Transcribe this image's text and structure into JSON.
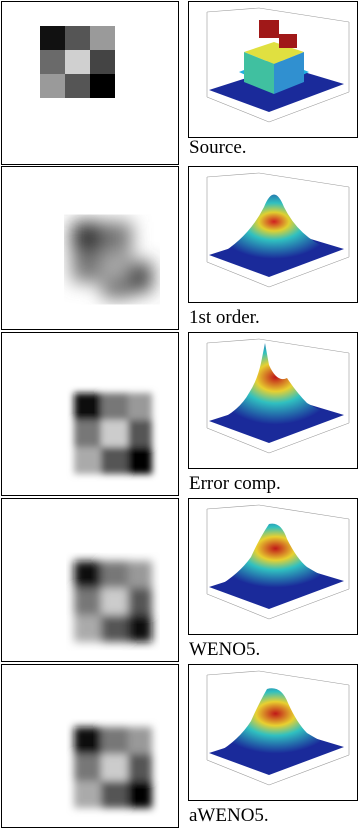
{
  "figure": {
    "rows": [
      {
        "caption": "Source.",
        "style": "source"
      },
      {
        "caption": "1st order.",
        "style": "first"
      },
      {
        "caption": "Error comp.",
        "style": "error"
      },
      {
        "caption": "WENO5.",
        "style": "weno"
      },
      {
        "caption": "aWENO5.",
        "style": "aweno"
      }
    ]
  }
}
